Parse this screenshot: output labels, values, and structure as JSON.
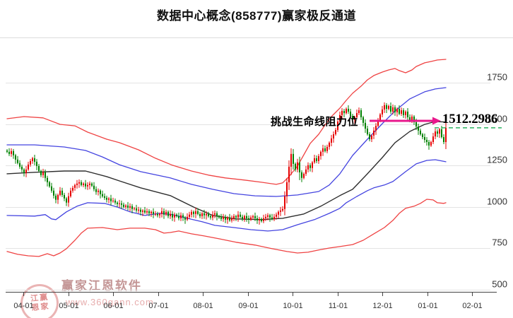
{
  "title": "数据中心概念(858777)赢家极反通道",
  "annotation": {
    "label": "挑战生命线阻力位",
    "value": "1512.2986",
    "arrow_color": "#e8188c",
    "dash_color": "#00a342",
    "dash_price": 1477,
    "arrow_price": 1519
  },
  "watermark": {
    "brand": "赢家江恩软件",
    "site": "www.360gann.com",
    "seal_chars": [
      "江",
      "赢",
      "恩",
      "家"
    ]
  },
  "chart_data": {
    "type": "candlestick",
    "title": "数据中心概念(858777)赢家极反通道",
    "grid": "horizontal-only",
    "ylim": [
      485,
      1920
    ],
    "y_ticks": [
      1750,
      1500,
      1250,
      1000,
      750,
      500
    ],
    "x_labels": [
      "04-01",
      "05-01",
      "06-01",
      "07-01",
      "08-01",
      "09-01",
      "10-01",
      "11-01",
      "12-01",
      "01-01",
      "02-01"
    ],
    "up_color": "#e60000",
    "down_color": "#008000",
    "grid_color": "#e3e3e3",
    "axis_color": "#444444",
    "label_color": "#333333",
    "closes": [
      1332,
      1319,
      1336,
      1311,
      1285,
      1264,
      1242,
      1225,
      1204,
      1225,
      1255,
      1276,
      1293,
      1272,
      1246,
      1216,
      1191,
      1208,
      1174,
      1148,
      1123,
      1097,
      1067,
      1042,
      1071,
      1097,
      1071,
      1050,
      1025,
      1063,
      1097,
      1114,
      1131,
      1140,
      1148,
      1131,
      1140,
      1123,
      1131,
      1140,
      1127,
      1106,
      1089,
      1097,
      1076,
      1063,
      1054,
      1042,
      1050,
      1033,
      1037,
      1025,
      1016,
      1020,
      1012,
      999,
      1007,
      994,
      1003,
      986,
      990,
      977,
      982,
      969,
      977,
      965,
      973,
      960,
      969,
      956,
      956,
      948,
      956,
      973,
      952,
      969,
      943,
      956,
      935,
      952,
      943,
      930,
      948,
      935,
      922,
      939,
      952,
      969,
      956,
      973,
      956,
      943,
      960,
      948,
      956,
      943,
      935,
      952,
      960,
      943,
      935,
      926,
      939,
      922,
      935,
      917,
      930,
      943,
      935,
      952,
      939,
      926,
      943,
      930,
      922,
      935,
      943,
      930,
      917,
      926,
      913,
      930,
      939,
      948,
      935,
      926,
      939,
      952,
      969,
      977,
      986,
      1063,
      1148,
      1242,
      1319,
      1259,
      1225,
      1268,
      1208,
      1174,
      1199,
      1225,
      1251,
      1234,
      1268,
      1293,
      1276,
      1306,
      1332,
      1353,
      1336,
      1362,
      1387,
      1413,
      1438,
      1464,
      1515,
      1554,
      1579,
      1566,
      1592,
      1575,
      1549,
      1524,
      1541,
      1566,
      1583,
      1541,
      1507,
      1472,
      1438,
      1408,
      1430,
      1460,
      1489,
      1524,
      1558,
      1588,
      1614,
      1592,
      1609,
      1575,
      1601,
      1571,
      1592,
      1562,
      1583,
      1554,
      1575,
      1541,
      1519,
      1545,
      1511,
      1485,
      1460,
      1438,
      1421,
      1404,
      1391,
      1370,
      1391,
      1425,
      1455,
      1442,
      1468,
      1421,
      1391,
      1477
    ],
    "lines": [
      {
        "name": "upper-red-band",
        "color": "#ef4343",
        "width": 1.3,
        "points": [
          [
            0,
            1532
          ],
          [
            8,
            1545
          ],
          [
            17,
            1537
          ],
          [
            25,
            1498
          ],
          [
            32,
            1489
          ],
          [
            38,
            1451
          ],
          [
            47,
            1408
          ],
          [
            53,
            1387
          ],
          [
            62,
            1344
          ],
          [
            70,
            1293
          ],
          [
            78,
            1251
          ],
          [
            87,
            1216
          ],
          [
            95,
            1191
          ],
          [
            103,
            1174
          ],
          [
            112,
            1161
          ],
          [
            120,
            1148
          ],
          [
            127,
            1135
          ],
          [
            130,
            1144
          ],
          [
            133,
            1182
          ],
          [
            137,
            1246
          ],
          [
            140,
            1314
          ],
          [
            143,
            1383
          ],
          [
            147,
            1438
          ],
          [
            150,
            1494
          ],
          [
            153,
            1545
          ],
          [
            157,
            1596
          ],
          [
            160,
            1643
          ],
          [
            163,
            1686
          ],
          [
            167,
            1729
          ],
          [
            170,
            1767
          ],
          [
            173,
            1793
          ],
          [
            177,
            1814
          ],
          [
            180,
            1827
          ],
          [
            183,
            1836
          ],
          [
            185,
            1823
          ],
          [
            188,
            1810
          ],
          [
            191,
            1827
          ],
          [
            193,
            1848
          ],
          [
            197,
            1870
          ],
          [
            200,
            1878
          ],
          [
            203,
            1887
          ],
          [
            207,
            1891
          ]
        ]
      },
      {
        "name": "upper-blue-band",
        "color": "#4444e0",
        "width": 1.3,
        "points": [
          [
            0,
            1374
          ],
          [
            13,
            1374
          ],
          [
            27,
            1361
          ],
          [
            37,
            1340
          ],
          [
            45,
            1301
          ],
          [
            53,
            1254
          ],
          [
            63,
            1212
          ],
          [
            77,
            1174
          ],
          [
            87,
            1135
          ],
          [
            97,
            1105
          ],
          [
            107,
            1079
          ],
          [
            117,
            1066
          ],
          [
            127,
            1062
          ],
          [
            137,
            1071
          ],
          [
            147,
            1092
          ],
          [
            152,
            1131
          ],
          [
            157,
            1199
          ],
          [
            163,
            1310
          ],
          [
            170,
            1408
          ],
          [
            177,
            1502
          ],
          [
            183,
            1579
          ],
          [
            190,
            1652
          ],
          [
            197,
            1695
          ],
          [
            202,
            1712
          ],
          [
            207,
            1720
          ]
        ]
      },
      {
        "name": "lifeline",
        "color": "#2e2e2e",
        "width": 1.4,
        "points": [
          [
            0,
            1199
          ],
          [
            13,
            1208
          ],
          [
            27,
            1216
          ],
          [
            37,
            1216
          ],
          [
            47,
            1182
          ],
          [
            53,
            1156
          ],
          [
            63,
            1114
          ],
          [
            77,
            1067
          ],
          [
            88,
            998
          ],
          [
            97,
            947
          ],
          [
            108,
            926
          ],
          [
            120,
            922
          ],
          [
            130,
            930
          ],
          [
            140,
            956
          ],
          [
            148,
            1003
          ],
          [
            157,
            1067
          ],
          [
            163,
            1105
          ],
          [
            170,
            1199
          ],
          [
            177,
            1297
          ],
          [
            183,
            1387
          ],
          [
            190,
            1455
          ],
          [
            197,
            1498
          ],
          [
            202,
            1515
          ],
          [
            207,
            1512
          ]
        ]
      },
      {
        "name": "lower-blue-band",
        "color": "#4444e0",
        "width": 1.3,
        "points": [
          [
            0,
            947
          ],
          [
            13,
            943
          ],
          [
            18,
            952
          ],
          [
            21,
            926
          ],
          [
            23,
            922
          ],
          [
            28,
            969
          ],
          [
            33,
            1003
          ],
          [
            38,
            1024
          ],
          [
            46,
            1020
          ],
          [
            52,
            998
          ],
          [
            58,
            969
          ],
          [
            65,
            947
          ],
          [
            72,
            960
          ],
          [
            78,
            952
          ],
          [
            85,
            930
          ],
          [
            92,
            909
          ],
          [
            98,
            887
          ],
          [
            107,
            874
          ],
          [
            115,
            861
          ],
          [
            123,
            853
          ],
          [
            130,
            861
          ],
          [
            137,
            891
          ],
          [
            145,
            922
          ],
          [
            152,
            960
          ],
          [
            157,
            990
          ],
          [
            160,
            1024
          ],
          [
            165,
            1062
          ],
          [
            170,
            1097
          ],
          [
            173,
            1114
          ],
          [
            178,
            1131
          ],
          [
            182,
            1152
          ],
          [
            185,
            1182
          ],
          [
            188,
            1212
          ],
          [
            193,
            1259
          ],
          [
            198,
            1280
          ],
          [
            202,
            1284
          ],
          [
            207,
            1272
          ]
        ]
      },
      {
        "name": "lower-red-band",
        "color": "#ef4343",
        "width": 1.3,
        "points": [
          [
            0,
            729
          ],
          [
            5,
            712
          ],
          [
            10,
            703
          ],
          [
            15,
            699
          ],
          [
            19,
            716
          ],
          [
            22,
            703
          ],
          [
            25,
            720
          ],
          [
            28,
            746
          ],
          [
            32,
            797
          ],
          [
            35,
            840
          ],
          [
            38,
            870
          ],
          [
            45,
            874
          ],
          [
            52,
            861
          ],
          [
            58,
            870
          ],
          [
            65,
            870
          ],
          [
            70,
            861
          ],
          [
            74,
            840
          ],
          [
            77,
            844
          ],
          [
            81,
            853
          ],
          [
            87,
            836
          ],
          [
            93,
            823
          ],
          [
            100,
            806
          ],
          [
            108,
            785
          ],
          [
            117,
            768
          ],
          [
            125,
            746
          ],
          [
            132,
            729
          ],
          [
            137,
            720
          ],
          [
            142,
            725
          ],
          [
            147,
            738
          ],
          [
            152,
            750
          ],
          [
            157,
            759
          ],
          [
            163,
            771
          ],
          [
            168,
            797
          ],
          [
            173,
            836
          ],
          [
            178,
            874
          ],
          [
            182,
            917
          ],
          [
            185,
            960
          ],
          [
            188,
            990
          ],
          [
            192,
            1003
          ],
          [
            195,
            1020
          ],
          [
            198,
            1045
          ],
          [
            201,
            1041
          ],
          [
            203,
            1024
          ],
          [
            206,
            1020
          ],
          [
            207,
            1024
          ]
        ]
      }
    ]
  }
}
